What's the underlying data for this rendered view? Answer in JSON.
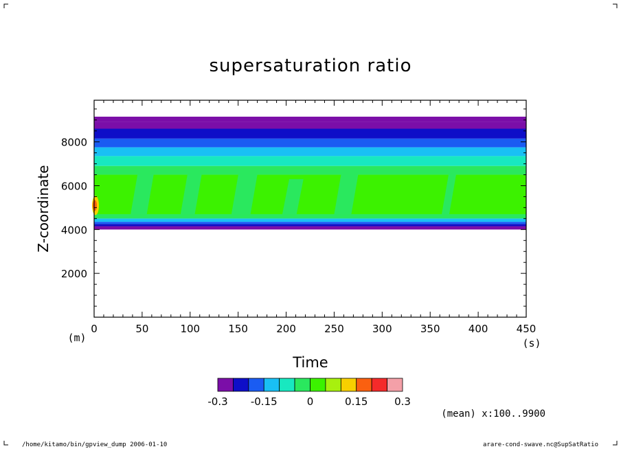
{
  "chart_data": {
    "type": "heatmap",
    "title": "supersaturation ratio",
    "xlabel": "Time",
    "ylabel": "Z-coordinate",
    "x_unit": "(s)",
    "y_unit": "(m)",
    "xlim": [
      0,
      450
    ],
    "ylim": [
      0,
      9900
    ],
    "x_ticks": [
      0,
      50,
      100,
      150,
      200,
      250,
      300,
      350,
      400,
      450
    ],
    "x_tick_labels": [
      "0",
      "50",
      "100",
      "150",
      "200",
      "250",
      "300",
      "350",
      "400",
      "450"
    ],
    "y_ticks": [
      2000,
      4000,
      6000,
      8000
    ],
    "y_tick_labels": [
      "2000",
      "4000",
      "6000",
      "8000"
    ],
    "annotation": "(mean) x:100..9900",
    "colorbar": {
      "levels": [
        -0.3,
        -0.25,
        -0.2,
        -0.15,
        -0.1,
        -0.05,
        0,
        0.05,
        0.1,
        0.15,
        0.2,
        0.25,
        0.3
      ],
      "colors": [
        "#7b0ea8",
        "#0e0ec8",
        "#1a5cf2",
        "#19c0f4",
        "#18e8c0",
        "#2ae85e",
        "#3cf200",
        "#a8f00e",
        "#f8d000",
        "#fa6010",
        "#f42a2a",
        "#f4a0a8"
      ],
      "tick_labels": [
        "-0.3",
        "-0.15",
        "0",
        "0.15",
        "0.3"
      ],
      "tick_values": [
        -0.3,
        -0.15,
        0,
        0.15,
        0.3
      ]
    },
    "bands": [
      {
        "z_bottom": 8900,
        "z_top": 9150,
        "value": -0.28
      },
      {
        "z_bottom": 8600,
        "z_top": 8900,
        "value": -0.28
      },
      {
        "z_bottom": 8150,
        "z_top": 8600,
        "value": -0.22
      },
      {
        "z_bottom": 7750,
        "z_top": 8150,
        "value": -0.18
      },
      {
        "z_bottom": 7350,
        "z_top": 7750,
        "value": -0.12
      },
      {
        "z_bottom": 6900,
        "z_top": 7350,
        "value": -0.08
      },
      {
        "z_bottom": 6500,
        "z_top": 6900,
        "value": -0.03
      },
      {
        "z_bottom": 4700,
        "z_top": 6500,
        "value": 0.02
      },
      {
        "z_bottom": 4500,
        "z_top": 4700,
        "value": -0.03
      },
      {
        "z_bottom": 4350,
        "z_top": 4500,
        "value": -0.12
      },
      {
        "z_bottom": 4250,
        "z_top": 4350,
        "value": -0.18
      },
      {
        "z_bottom": 4150,
        "z_top": 4250,
        "value": -0.22
      },
      {
        "z_bottom": 4000,
        "z_top": 4150,
        "value": -0.28
      }
    ],
    "patches": [
      {
        "t_start": 38,
        "t_end": 62,
        "z_bottom": 4700,
        "z_top": 6500,
        "value": -0.03
      },
      {
        "t_start": 90,
        "t_end": 112,
        "z_bottom": 4700,
        "z_top": 6500,
        "value": -0.03
      },
      {
        "t_start": 143,
        "t_end": 170,
        "z_bottom": 4700,
        "z_top": 6500,
        "value": -0.03
      },
      {
        "t_start": 196,
        "t_end": 218,
        "z_bottom": 4700,
        "z_top": 6300,
        "value": -0.03
      },
      {
        "t_start": 250,
        "t_end": 275,
        "z_bottom": 4700,
        "z_top": 6500,
        "value": -0.03
      },
      {
        "t_start": 362,
        "t_end": 377,
        "z_bottom": 4700,
        "z_top": 6500,
        "value": -0.03
      }
    ],
    "hotspot": {
      "t": 0,
      "z": 5100,
      "value": 0.18
    }
  },
  "footer": {
    "left": "/home/kitamo/bin/gpview_dump  2006-01-10",
    "right": "arare-cond-swave.nc@SupSatRatio"
  }
}
